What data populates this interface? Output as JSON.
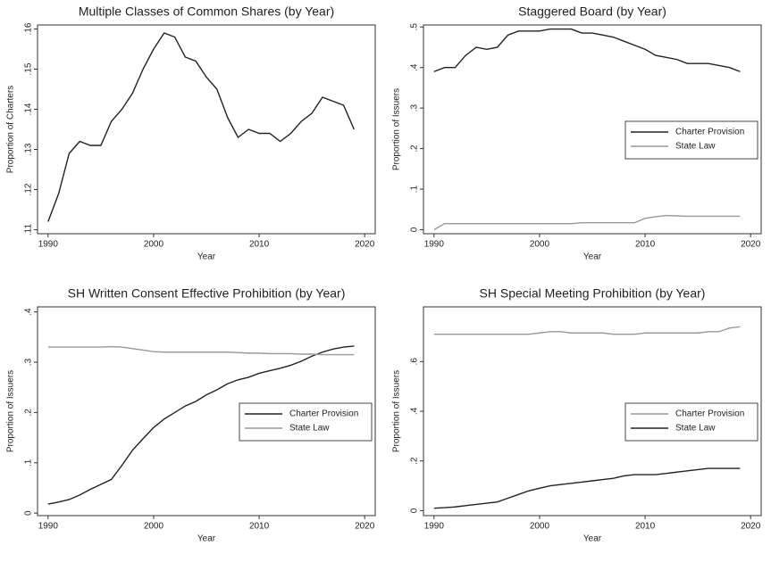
{
  "chart_data": [
    {
      "type": "line",
      "title": "Multiple Classes of Common Shares (by Year)",
      "x_label": "Year",
      "y_label": "Proportion of Charters",
      "x": [
        1990,
        1991,
        1992,
        1993,
        1994,
        1995,
        1996,
        1997,
        1998,
        1999,
        2000,
        2001,
        2002,
        2003,
        2004,
        2005,
        2006,
        2007,
        2008,
        2009,
        2010,
        2011,
        2012,
        2013,
        2014,
        2015,
        2016,
        2017,
        2018,
        2019
      ],
      "values": [
        0.112,
        0.119,
        0.129,
        0.132,
        0.131,
        0.131,
        0.137,
        0.14,
        0.144,
        0.15,
        0.155,
        0.159,
        0.158,
        0.153,
        0.152,
        0.148,
        0.145,
        0.138,
        0.133,
        0.135,
        0.134,
        0.134,
        0.132,
        0.134,
        0.137,
        0.139,
        0.143,
        0.142,
        0.141,
        0.135
      ],
      "color": "#222222",
      "xlim": [
        1989,
        2021
      ],
      "xticks": [
        1990,
        2000,
        2010,
        2020
      ],
      "ylim": [
        0.109,
        0.161
      ],
      "yticks": [
        {
          "value": 0.11,
          "label": ".11"
        },
        {
          "value": 0.12,
          "label": ".12"
        },
        {
          "value": 0.13,
          "label": ".13"
        },
        {
          "value": 0.14,
          "label": ".14"
        },
        {
          "value": 0.15,
          "label": ".15"
        },
        {
          "value": 0.16,
          "label": ".16"
        }
      ]
    },
    {
      "type": "line",
      "title": "Staggered Board (by Year)",
      "x_label": "Year",
      "y_label": "Proportion of Issuers",
      "legend": "right",
      "x": [
        1990,
        1991,
        1992,
        1993,
        1994,
        1995,
        1996,
        1997,
        1998,
        1999,
        2000,
        2001,
        2002,
        2003,
        2004,
        2005,
        2006,
        2007,
        2008,
        2009,
        2010,
        2011,
        2012,
        2013,
        2014,
        2015,
        2016,
        2017,
        2018,
        2019
      ],
      "series": [
        {
          "name": "Charter Provision",
          "color": "#222222",
          "values": [
            0.39,
            0.4,
            0.4,
            0.43,
            0.45,
            0.445,
            0.45,
            0.48,
            0.49,
            0.49,
            0.49,
            0.495,
            0.495,
            0.495,
            0.485,
            0.485,
            0.48,
            0.475,
            0.465,
            0.455,
            0.445,
            0.43,
            0.425,
            0.42,
            0.41,
            0.41,
            0.41,
            0.405,
            0.4,
            0.39
          ]
        },
        {
          "name": "State Law",
          "color": "#999999",
          "values": [
            0.0,
            0.015,
            0.015,
            0.015,
            0.015,
            0.015,
            0.015,
            0.015,
            0.015,
            0.015,
            0.015,
            0.015,
            0.015,
            0.015,
            0.017,
            0.017,
            0.017,
            0.017,
            0.017,
            0.017,
            0.028,
            0.032,
            0.035,
            0.034,
            0.033,
            0.033,
            0.033,
            0.033,
            0.033,
            0.033
          ]
        }
      ],
      "xlim": [
        1989,
        2021
      ],
      "xticks": [
        1990,
        2000,
        2010,
        2020
      ],
      "ylim": [
        -0.01,
        0.505
      ],
      "yticks": [
        0,
        {
          "value": 0.1,
          "label": ".1"
        },
        {
          "value": 0.2,
          "label": ".2"
        },
        {
          "value": 0.3,
          "label": ".3"
        },
        {
          "value": 0.4,
          "label": ".4"
        },
        {
          "value": 0.5,
          "label": ".5"
        }
      ]
    },
    {
      "type": "line",
      "title": "SH Written Consent Effective Prohibition (by Year)",
      "x_label": "Year",
      "y_label": "Proportion of Issuers",
      "legend": "right",
      "x": [
        1990,
        1991,
        1992,
        1993,
        1994,
        1995,
        1996,
        1997,
        1998,
        1999,
        2000,
        2001,
        2002,
        2003,
        2004,
        2005,
        2006,
        2007,
        2008,
        2009,
        2010,
        2011,
        2012,
        2013,
        2014,
        2015,
        2016,
        2017,
        2018,
        2019
      ],
      "series": [
        {
          "name": "Charter Provision",
          "color": "#222222",
          "values": [
            0.018,
            0.022,
            0.027,
            0.036,
            0.047,
            0.057,
            0.067,
            0.095,
            0.125,
            0.148,
            0.17,
            0.187,
            0.2,
            0.213,
            0.222,
            0.235,
            0.245,
            0.257,
            0.265,
            0.27,
            0.278,
            0.283,
            0.288,
            0.294,
            0.302,
            0.312,
            0.32,
            0.326,
            0.33,
            0.332
          ]
        },
        {
          "name": "State Law",
          "color": "#999999",
          "values": [
            0.33,
            0.33,
            0.33,
            0.33,
            0.33,
            0.33,
            0.331,
            0.33,
            0.327,
            0.324,
            0.321,
            0.32,
            0.32,
            0.32,
            0.32,
            0.32,
            0.32,
            0.32,
            0.319,
            0.318,
            0.318,
            0.317,
            0.317,
            0.317,
            0.316,
            0.316,
            0.315,
            0.315,
            0.315,
            0.315
          ]
        }
      ],
      "xlim": [
        1989,
        2021
      ],
      "xticks": [
        1990,
        2000,
        2010,
        2020
      ],
      "ylim": [
        -0.005,
        0.41
      ],
      "yticks": [
        0,
        {
          "value": 0.1,
          "label": ".1"
        },
        {
          "value": 0.2,
          "label": ".2"
        },
        {
          "value": 0.3,
          "label": ".3"
        },
        {
          "value": 0.4,
          "label": ".4"
        }
      ]
    },
    {
      "type": "line",
      "title": "SH Special Meeting Prohibition (by Year)",
      "x_label": "Year",
      "y_label": "Proportion of Issuers",
      "legend": "right",
      "x": [
        1990,
        1991,
        1992,
        1993,
        1994,
        1995,
        1996,
        1997,
        1998,
        1999,
        2000,
        2001,
        2002,
        2003,
        2004,
        2005,
        2006,
        2007,
        2008,
        2009,
        2010,
        2011,
        2012,
        2013,
        2014,
        2015,
        2016,
        2017,
        2018,
        2019
      ],
      "series": [
        {
          "name": "Charter Provision",
          "color": "#999999",
          "values": [
            0.71,
            0.71,
            0.71,
            0.71,
            0.71,
            0.71,
            0.71,
            0.71,
            0.71,
            0.71,
            0.715,
            0.72,
            0.72,
            0.715,
            0.715,
            0.715,
            0.715,
            0.71,
            0.71,
            0.71,
            0.715,
            0.715,
            0.715,
            0.715,
            0.715,
            0.715,
            0.72,
            0.72,
            0.735,
            0.74
          ]
        },
        {
          "name": "State Law",
          "color": "#222222",
          "values": [
            0.01,
            0.012,
            0.015,
            0.02,
            0.025,
            0.03,
            0.035,
            0.05,
            0.065,
            0.08,
            0.09,
            0.1,
            0.105,
            0.11,
            0.115,
            0.12,
            0.125,
            0.13,
            0.14,
            0.145,
            0.145,
            0.145,
            0.15,
            0.155,
            0.16,
            0.165,
            0.17,
            0.17,
            0.17,
            0.17
          ]
        }
      ],
      "xlim": [
        1989,
        2021
      ],
      "xticks": [
        1990,
        2000,
        2010,
        2020
      ],
      "ylim": [
        -0.02,
        0.82
      ],
      "yticks": [
        0,
        {
          "value": 0.2,
          "label": ".2"
        },
        {
          "value": 0.4,
          "label": ".4"
        },
        {
          "value": 0.6,
          "label": ".6"
        }
      ]
    }
  ]
}
